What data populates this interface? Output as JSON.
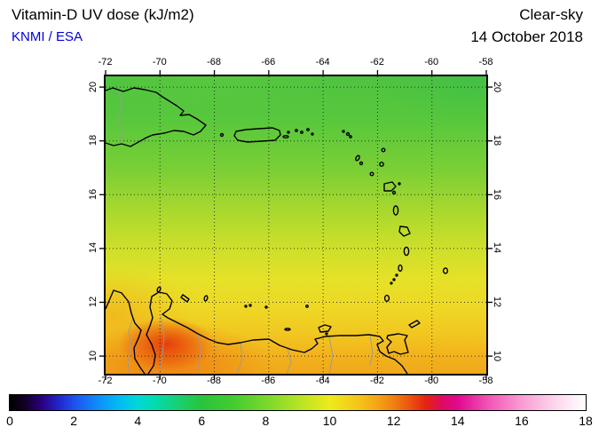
{
  "header": {
    "title": "Vitamin-D UV dose (kJ/m2)",
    "credit": "KNMI / ESA",
    "sky_condition": "Clear-sky",
    "date": "14 October 2018"
  },
  "map": {
    "lon_ticks": [
      "-72",
      "-70",
      "-68",
      "-66",
      "-64",
      "-62",
      "-60",
      "-58"
    ],
    "lat_ticks": [
      "20",
      "18",
      "16",
      "14",
      "12",
      "10"
    ]
  },
  "colorbar": {
    "min": 0,
    "max": 18,
    "tick_labels": [
      "0",
      "2",
      "4",
      "6",
      "8",
      "10",
      "12",
      "14",
      "16",
      "18"
    ],
    "stops": [
      {
        "v": 0,
        "c": "#000000"
      },
      {
        "v": 0.5,
        "c": "#14002a"
      },
      {
        "v": 1,
        "c": "#2a0080"
      },
      {
        "v": 1.5,
        "c": "#2222c8"
      },
      {
        "v": 2,
        "c": "#1e50f0"
      },
      {
        "v": 2.5,
        "c": "#1478f8"
      },
      {
        "v": 3,
        "c": "#0aa0f8"
      },
      {
        "v": 3.5,
        "c": "#00c0f0"
      },
      {
        "v": 4,
        "c": "#00d8d8"
      },
      {
        "v": 4.5,
        "c": "#00dcb0"
      },
      {
        "v": 5,
        "c": "#10d488"
      },
      {
        "v": 5.5,
        "c": "#1ecc5e"
      },
      {
        "v": 6,
        "c": "#28c43c"
      },
      {
        "v": 7,
        "c": "#44cc30"
      },
      {
        "v": 8,
        "c": "#78d82c"
      },
      {
        "v": 9,
        "c": "#b4e424"
      },
      {
        "v": 10,
        "c": "#eeea1c"
      },
      {
        "v": 10.5,
        "c": "#f2d61a"
      },
      {
        "v": 11,
        "c": "#f4c018"
      },
      {
        "v": 11.5,
        "c": "#f4a414"
      },
      {
        "v": 12,
        "c": "#f08010"
      },
      {
        "v": 12.5,
        "c": "#ec5410"
      },
      {
        "v": 13,
        "c": "#e42410"
      },
      {
        "v": 13.5,
        "c": "#de0a60"
      },
      {
        "v": 14,
        "c": "#e00890"
      },
      {
        "v": 15,
        "c": "#f258b8"
      },
      {
        "v": 16,
        "c": "#f89cd4"
      },
      {
        "v": 17,
        "c": "#fdd4ec"
      },
      {
        "v": 18,
        "c": "#ffffff"
      }
    ]
  },
  "chart_data": {
    "type": "heatmap",
    "title": "Vitamin-D UV dose (kJ/m2)",
    "subtitle": "Clear-sky, 14 October 2018",
    "source": "KNMI / ESA",
    "x_range": [
      -72,
      -58
    ],
    "x_ticks": [
      -72,
      -70,
      -68,
      -66,
      -64,
      -62,
      -60,
      -58
    ],
    "y_range": [
      9.3,
      20.4
    ],
    "y_ticks": [
      10,
      12,
      14,
      16,
      18,
      20
    ],
    "colorbar_range": [
      0,
      18
    ],
    "colorbar_tick_step": 2,
    "field_estimates": [
      {
        "lat": 20,
        "approx_value": 8.5
      },
      {
        "lat": 18,
        "approx_value": 9
      },
      {
        "lat": 16,
        "approx_value": 9.5
      },
      {
        "lat": 14,
        "approx_value": 10
      },
      {
        "lat": 12,
        "approx_value": 10.5
      },
      {
        "lat": 10,
        "approx_value": 11.5
      },
      {
        "note": "local maximum about 12.5 over northwest Venezuela near 70W 10N"
      }
    ]
  }
}
